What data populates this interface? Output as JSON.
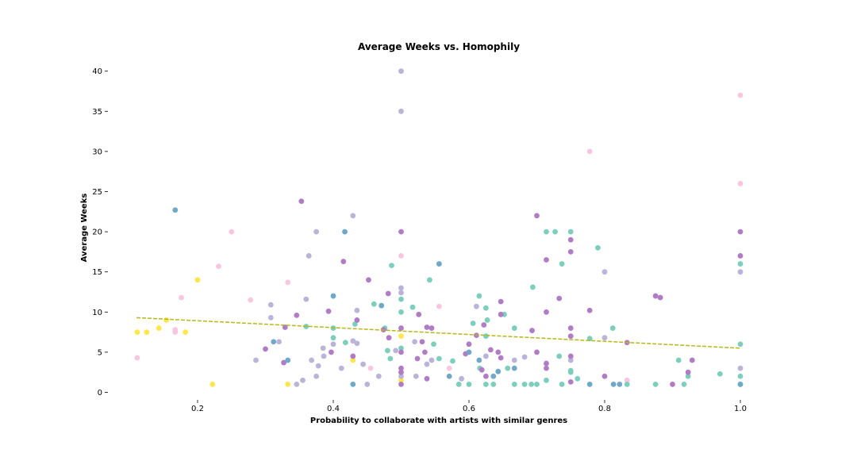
{
  "chart_data": {
    "type": "scatter",
    "title": "Average Weeks vs. Homophily",
    "xlabel": "Probability to collaborate with artists with similar genres",
    "ylabel": "Average Weeks",
    "xlim": [
      0.09,
      1.0
    ],
    "ylim": [
      -0.8,
      42
    ],
    "x_ticks": [
      0.2,
      0.4,
      0.6,
      0.8,
      1.0
    ],
    "x_tick_labels": [
      "0.2",
      "0.4",
      "0.6",
      "0.8",
      "1.0"
    ],
    "y_ticks": [
      0,
      5,
      10,
      15,
      20,
      25,
      30,
      35,
      40
    ],
    "y_tick_labels": [
      "0",
      "5",
      "10",
      "15",
      "20",
      "25",
      "30",
      "35",
      "40"
    ],
    "grid": false,
    "legend": "none",
    "colors": {
      "yellow": "#fde74c",
      "pink": "#f9c6e0",
      "lavender": "#b9b4d8",
      "teal": "#7dcfbd",
      "purple": "#b07cc6",
      "blue": "#6fa8c8",
      "trend": "#b5b817"
    },
    "trendline": {
      "style": "dashed",
      "color": "trend",
      "x": [
        0.11,
        1.0
      ],
      "y": [
        9.3,
        5.5
      ]
    },
    "points": [
      {
        "x": 0.111,
        "y": 7.5,
        "c": "yellow"
      },
      {
        "x": 0.125,
        "y": 7.5,
        "c": "yellow"
      },
      {
        "x": 0.143,
        "y": 8.0,
        "c": "yellow"
      },
      {
        "x": 0.154,
        "y": 9.0,
        "c": "yellow"
      },
      {
        "x": 0.182,
        "y": 7.5,
        "c": "yellow"
      },
      {
        "x": 0.2,
        "y": 14.0,
        "c": "yellow"
      },
      {
        "x": 0.222,
        "y": 1.0,
        "c": "yellow"
      },
      {
        "x": 0.333,
        "y": 1.0,
        "c": "yellow"
      },
      {
        "x": 0.429,
        "y": 4.0,
        "c": "yellow"
      },
      {
        "x": 0.5,
        "y": 7.0,
        "c": "yellow"
      },
      {
        "x": 0.5,
        "y": 1.5,
        "c": "yellow"
      },
      {
        "x": 0.111,
        "y": 4.3,
        "c": "pink"
      },
      {
        "x": 0.167,
        "y": 7.5,
        "c": "pink"
      },
      {
        "x": 0.167,
        "y": 7.8,
        "c": "pink"
      },
      {
        "x": 0.176,
        "y": 11.8,
        "c": "pink"
      },
      {
        "x": 0.231,
        "y": 15.7,
        "c": "pink"
      },
      {
        "x": 0.25,
        "y": 20.0,
        "c": "pink"
      },
      {
        "x": 0.278,
        "y": 11.5,
        "c": "pink"
      },
      {
        "x": 0.333,
        "y": 13.7,
        "c": "pink"
      },
      {
        "x": 0.455,
        "y": 3.0,
        "c": "pink"
      },
      {
        "x": 0.5,
        "y": 17.0,
        "c": "pink"
      },
      {
        "x": 0.556,
        "y": 10.7,
        "c": "pink"
      },
      {
        "x": 0.571,
        "y": 3.0,
        "c": "pink"
      },
      {
        "x": 0.778,
        "y": 30.0,
        "c": "pink"
      },
      {
        "x": 0.833,
        "y": 1.5,
        "c": "pink"
      },
      {
        "x": 1.0,
        "y": 37.0,
        "c": "pink"
      },
      {
        "x": 1.0,
        "y": 26.0,
        "c": "pink"
      },
      {
        "x": 0.286,
        "y": 4.0,
        "c": "lavender"
      },
      {
        "x": 0.308,
        "y": 10.9,
        "c": "lavender"
      },
      {
        "x": 0.308,
        "y": 9.3,
        "c": "lavender"
      },
      {
        "x": 0.32,
        "y": 6.3,
        "c": "lavender"
      },
      {
        "x": 0.346,
        "y": 1.0,
        "c": "lavender"
      },
      {
        "x": 0.355,
        "y": 1.5,
        "c": "lavender"
      },
      {
        "x": 0.36,
        "y": 11.6,
        "c": "lavender"
      },
      {
        "x": 0.364,
        "y": 17.0,
        "c": "lavender"
      },
      {
        "x": 0.368,
        "y": 4.0,
        "c": "lavender"
      },
      {
        "x": 0.375,
        "y": 2.0,
        "c": "lavender"
      },
      {
        "x": 0.375,
        "y": 20.0,
        "c": "lavender"
      },
      {
        "x": 0.378,
        "y": 3.3,
        "c": "lavender"
      },
      {
        "x": 0.385,
        "y": 5.5,
        "c": "lavender"
      },
      {
        "x": 0.386,
        "y": 4.5,
        "c": "lavender"
      },
      {
        "x": 0.4,
        "y": 6.0,
        "c": "lavender"
      },
      {
        "x": 0.412,
        "y": 3.0,
        "c": "lavender"
      },
      {
        "x": 0.429,
        "y": 22.0,
        "c": "lavender"
      },
      {
        "x": 0.429,
        "y": 6.4,
        "c": "lavender"
      },
      {
        "x": 0.435,
        "y": 6.1,
        "c": "lavender"
      },
      {
        "x": 0.435,
        "y": 10.2,
        "c": "lavender"
      },
      {
        "x": 0.444,
        "y": 3.5,
        "c": "lavender"
      },
      {
        "x": 0.45,
        "y": 1.0,
        "c": "lavender"
      },
      {
        "x": 0.467,
        "y": 2.0,
        "c": "lavender"
      },
      {
        "x": 0.492,
        "y": 5.2,
        "c": "lavender"
      },
      {
        "x": 0.5,
        "y": 40.0,
        "c": "lavender"
      },
      {
        "x": 0.5,
        "y": 35.0,
        "c": "lavender"
      },
      {
        "x": 0.5,
        "y": 13.0,
        "c": "lavender"
      },
      {
        "x": 0.5,
        "y": 12.4,
        "c": "lavender"
      },
      {
        "x": 0.5,
        "y": 2.0,
        "c": "lavender"
      },
      {
        "x": 0.52,
        "y": 6.3,
        "c": "lavender"
      },
      {
        "x": 0.522,
        "y": 2.0,
        "c": "lavender"
      },
      {
        "x": 0.538,
        "y": 3.5,
        "c": "lavender"
      },
      {
        "x": 0.545,
        "y": 4.0,
        "c": "lavender"
      },
      {
        "x": 0.589,
        "y": 1.7,
        "c": "lavender"
      },
      {
        "x": 0.6,
        "y": 6.0,
        "c": "lavender"
      },
      {
        "x": 0.611,
        "y": 10.7,
        "c": "lavender"
      },
      {
        "x": 0.625,
        "y": 4.5,
        "c": "lavender"
      },
      {
        "x": 0.667,
        "y": 4.0,
        "c": "lavender"
      },
      {
        "x": 0.682,
        "y": 4.4,
        "c": "lavender"
      },
      {
        "x": 0.75,
        "y": 4.0,
        "c": "lavender"
      },
      {
        "x": 0.8,
        "y": 15.0,
        "c": "lavender"
      },
      {
        "x": 0.8,
        "y": 6.8,
        "c": "lavender"
      },
      {
        "x": 1.0,
        "y": 15.0,
        "c": "lavender"
      },
      {
        "x": 1.0,
        "y": 3.0,
        "c": "lavender"
      },
      {
        "x": 0.36,
        "y": 8.2,
        "c": "teal"
      },
      {
        "x": 0.4,
        "y": 6.8,
        "c": "teal"
      },
      {
        "x": 0.4,
        "y": 8.0,
        "c": "teal"
      },
      {
        "x": 0.418,
        "y": 6.2,
        "c": "teal"
      },
      {
        "x": 0.432,
        "y": 8.5,
        "c": "teal"
      },
      {
        "x": 0.46,
        "y": 11.0,
        "c": "teal"
      },
      {
        "x": 0.476,
        "y": 8.0,
        "c": "teal"
      },
      {
        "x": 0.48,
        "y": 5.2,
        "c": "teal"
      },
      {
        "x": 0.484,
        "y": 4.2,
        "c": "teal"
      },
      {
        "x": 0.486,
        "y": 15.8,
        "c": "teal"
      },
      {
        "x": 0.5,
        "y": 11.6,
        "c": "teal"
      },
      {
        "x": 0.5,
        "y": 10.0,
        "c": "teal"
      },
      {
        "x": 0.5,
        "y": 5.5,
        "c": "teal"
      },
      {
        "x": 0.517,
        "y": 10.6,
        "c": "teal"
      },
      {
        "x": 0.542,
        "y": 14.0,
        "c": "teal"
      },
      {
        "x": 0.548,
        "y": 6.0,
        "c": "teal"
      },
      {
        "x": 0.556,
        "y": 4.2,
        "c": "teal"
      },
      {
        "x": 0.576,
        "y": 3.9,
        "c": "teal"
      },
      {
        "x": 0.585,
        "y": 1.0,
        "c": "teal"
      },
      {
        "x": 0.6,
        "y": 1.0,
        "c": "teal"
      },
      {
        "x": 0.606,
        "y": 8.6,
        "c": "teal"
      },
      {
        "x": 0.615,
        "y": 12.0,
        "c": "teal"
      },
      {
        "x": 0.616,
        "y": 3.0,
        "c": "teal"
      },
      {
        "x": 0.625,
        "y": 10.5,
        "c": "teal"
      },
      {
        "x": 0.625,
        "y": 7.0,
        "c": "teal"
      },
      {
        "x": 0.627,
        "y": 9.0,
        "c": "teal"
      },
      {
        "x": 0.625,
        "y": 1.0,
        "c": "teal"
      },
      {
        "x": 0.636,
        "y": 1.0,
        "c": "teal"
      },
      {
        "x": 0.652,
        "y": 9.7,
        "c": "teal"
      },
      {
        "x": 0.657,
        "y": 3.0,
        "c": "teal"
      },
      {
        "x": 0.667,
        "y": 8.0,
        "c": "teal"
      },
      {
        "x": 0.667,
        "y": 1.0,
        "c": "teal"
      },
      {
        "x": 0.682,
        "y": 1.0,
        "c": "teal"
      },
      {
        "x": 0.692,
        "y": 1.0,
        "c": "teal"
      },
      {
        "x": 0.694,
        "y": 13.1,
        "c": "teal"
      },
      {
        "x": 0.7,
        "y": 1.0,
        "c": "teal"
      },
      {
        "x": 0.714,
        "y": 20.0,
        "c": "teal"
      },
      {
        "x": 0.714,
        "y": 1.5,
        "c": "teal"
      },
      {
        "x": 0.727,
        "y": 20.0,
        "c": "teal"
      },
      {
        "x": 0.733,
        "y": 4.5,
        "c": "teal"
      },
      {
        "x": 0.737,
        "y": 16.0,
        "c": "teal"
      },
      {
        "x": 0.737,
        "y": 1.0,
        "c": "teal"
      },
      {
        "x": 0.75,
        "y": 20.0,
        "c": "teal"
      },
      {
        "x": 0.75,
        "y": 2.7,
        "c": "teal"
      },
      {
        "x": 0.75,
        "y": 2.5,
        "c": "teal"
      },
      {
        "x": 0.76,
        "y": 1.7,
        "c": "teal"
      },
      {
        "x": 0.778,
        "y": 6.7,
        "c": "teal"
      },
      {
        "x": 0.79,
        "y": 18.0,
        "c": "teal"
      },
      {
        "x": 0.812,
        "y": 8.0,
        "c": "teal"
      },
      {
        "x": 0.833,
        "y": 1.0,
        "c": "teal"
      },
      {
        "x": 0.875,
        "y": 1.0,
        "c": "teal"
      },
      {
        "x": 0.909,
        "y": 4.0,
        "c": "teal"
      },
      {
        "x": 0.917,
        "y": 1.0,
        "c": "teal"
      },
      {
        "x": 0.923,
        "y": 2.0,
        "c": "teal"
      },
      {
        "x": 0.97,
        "y": 2.3,
        "c": "teal"
      },
      {
        "x": 1.0,
        "y": 16.0,
        "c": "teal"
      },
      {
        "x": 1.0,
        "y": 6.0,
        "c": "teal"
      },
      {
        "x": 1.0,
        "y": 2.0,
        "c": "teal"
      },
      {
        "x": 1.0,
        "y": 1.0,
        "c": "teal"
      },
      {
        "x": 0.3,
        "y": 5.4,
        "c": "purple"
      },
      {
        "x": 0.327,
        "y": 3.7,
        "c": "purple"
      },
      {
        "x": 0.329,
        "y": 8.1,
        "c": "purple"
      },
      {
        "x": 0.346,
        "y": 9.6,
        "c": "purple"
      },
      {
        "x": 0.353,
        "y": 23.8,
        "c": "purple"
      },
      {
        "x": 0.393,
        "y": 10.1,
        "c": "purple"
      },
      {
        "x": 0.397,
        "y": 5.0,
        "c": "purple"
      },
      {
        "x": 0.415,
        "y": 16.3,
        "c": "purple"
      },
      {
        "x": 0.429,
        "y": 4.5,
        "c": "purple"
      },
      {
        "x": 0.435,
        "y": 9.0,
        "c": "purple"
      },
      {
        "x": 0.452,
        "y": 14.0,
        "c": "purple"
      },
      {
        "x": 0.474,
        "y": 7.8,
        "c": "purple"
      },
      {
        "x": 0.481,
        "y": 12.3,
        "c": "purple"
      },
      {
        "x": 0.482,
        "y": 6.8,
        "c": "purple"
      },
      {
        "x": 0.5,
        "y": 20.0,
        "c": "purple"
      },
      {
        "x": 0.5,
        "y": 8.0,
        "c": "purple"
      },
      {
        "x": 0.5,
        "y": 5.0,
        "c": "purple"
      },
      {
        "x": 0.5,
        "y": 3.0,
        "c": "purple"
      },
      {
        "x": 0.5,
        "y": 2.5,
        "c": "purple"
      },
      {
        "x": 0.5,
        "y": 1.0,
        "c": "purple"
      },
      {
        "x": 0.524,
        "y": 4.2,
        "c": "purple"
      },
      {
        "x": 0.526,
        "y": 9.7,
        "c": "purple"
      },
      {
        "x": 0.531,
        "y": 6.3,
        "c": "purple"
      },
      {
        "x": 0.535,
        "y": 5.0,
        "c": "purple"
      },
      {
        "x": 0.538,
        "y": 8.1,
        "c": "purple"
      },
      {
        "x": 0.538,
        "y": 1.7,
        "c": "purple"
      },
      {
        "x": 0.545,
        "y": 8.0,
        "c": "purple"
      },
      {
        "x": 0.595,
        "y": 4.8,
        "c": "purple"
      },
      {
        "x": 0.6,
        "y": 6.0,
        "c": "purple"
      },
      {
        "x": 0.611,
        "y": 7.1,
        "c": "purple"
      },
      {
        "x": 0.619,
        "y": 2.8,
        "c": "purple"
      },
      {
        "x": 0.622,
        "y": 8.4,
        "c": "purple"
      },
      {
        "x": 0.625,
        "y": 2.0,
        "c": "purple"
      },
      {
        "x": 0.632,
        "y": 5.3,
        "c": "purple"
      },
      {
        "x": 0.643,
        "y": 5.0,
        "c": "purple"
      },
      {
        "x": 0.647,
        "y": 11.3,
        "c": "purple"
      },
      {
        "x": 0.647,
        "y": 9.7,
        "c": "purple"
      },
      {
        "x": 0.647,
        "y": 4.3,
        "c": "purple"
      },
      {
        "x": 0.693,
        "y": 7.7,
        "c": "purple"
      },
      {
        "x": 0.7,
        "y": 22.0,
        "c": "purple"
      },
      {
        "x": 0.7,
        "y": 5.0,
        "c": "purple"
      },
      {
        "x": 0.714,
        "y": 16.5,
        "c": "purple"
      },
      {
        "x": 0.714,
        "y": 10.0,
        "c": "purple"
      },
      {
        "x": 0.714,
        "y": 3.6,
        "c": "purple"
      },
      {
        "x": 0.714,
        "y": 3.0,
        "c": "purple"
      },
      {
        "x": 0.733,
        "y": 11.7,
        "c": "purple"
      },
      {
        "x": 0.75,
        "y": 19.0,
        "c": "purple"
      },
      {
        "x": 0.75,
        "y": 17.5,
        "c": "purple"
      },
      {
        "x": 0.75,
        "y": 8.0,
        "c": "purple"
      },
      {
        "x": 0.75,
        "y": 7.0,
        "c": "purple"
      },
      {
        "x": 0.75,
        "y": 4.5,
        "c": "purple"
      },
      {
        "x": 0.75,
        "y": 1.3,
        "c": "purple"
      },
      {
        "x": 0.778,
        "y": 10.2,
        "c": "purple"
      },
      {
        "x": 0.8,
        "y": 2.0,
        "c": "purple"
      },
      {
        "x": 0.833,
        "y": 6.2,
        "c": "purple"
      },
      {
        "x": 0.875,
        "y": 12.0,
        "c": "purple"
      },
      {
        "x": 0.882,
        "y": 11.8,
        "c": "purple"
      },
      {
        "x": 0.9,
        "y": 1.0,
        "c": "purple"
      },
      {
        "x": 0.923,
        "y": 2.5,
        "c": "purple"
      },
      {
        "x": 0.929,
        "y": 4.0,
        "c": "purple"
      },
      {
        "x": 1.0,
        "y": 20.0,
        "c": "purple"
      },
      {
        "x": 1.0,
        "y": 17.0,
        "c": "purple"
      },
      {
        "x": 0.167,
        "y": 22.7,
        "c": "blue"
      },
      {
        "x": 0.312,
        "y": 6.3,
        "c": "blue"
      },
      {
        "x": 0.333,
        "y": 4.0,
        "c": "blue"
      },
      {
        "x": 0.4,
        "y": 12.0,
        "c": "blue"
      },
      {
        "x": 0.417,
        "y": 20.0,
        "c": "blue"
      },
      {
        "x": 0.429,
        "y": 1.0,
        "c": "blue"
      },
      {
        "x": 0.471,
        "y": 10.8,
        "c": "blue"
      },
      {
        "x": 0.556,
        "y": 16.0,
        "c": "blue"
      },
      {
        "x": 0.571,
        "y": 2.0,
        "c": "blue"
      },
      {
        "x": 0.6,
        "y": 5.0,
        "c": "blue"
      },
      {
        "x": 0.615,
        "y": 4.0,
        "c": "blue"
      },
      {
        "x": 0.636,
        "y": 2.0,
        "c": "blue"
      },
      {
        "x": 0.643,
        "y": 2.6,
        "c": "blue"
      },
      {
        "x": 0.667,
        "y": 3.0,
        "c": "blue"
      },
      {
        "x": 0.778,
        "y": 1.0,
        "c": "blue"
      },
      {
        "x": 0.813,
        "y": 1.0,
        "c": "blue"
      },
      {
        "x": 0.822,
        "y": 1.0,
        "c": "blue"
      },
      {
        "x": 1.0,
        "y": 1.0,
        "c": "blue"
      }
    ]
  }
}
